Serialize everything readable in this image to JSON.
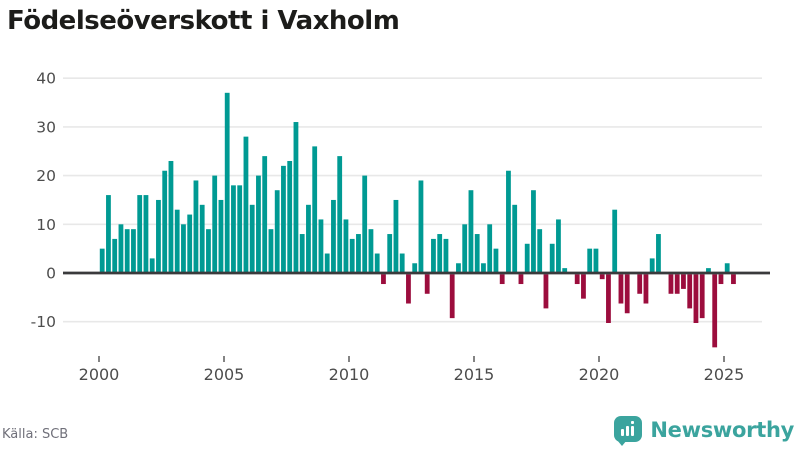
{
  "title": "Födelseöverskott i Vaxholm",
  "source": "Källa: SCB",
  "branding": {
    "name": "Newsworthy",
    "color": "#3ba49e",
    "icon": "bar-chart-speech-bubble-icon"
  },
  "colors": {
    "positive_bar": "#009a93",
    "negative_bar": "#9c0d3d",
    "zero_axis": "#3a3a3c",
    "gridline": "#e8e8e8",
    "tick_label": "#4d4d4d",
    "title_text": "#1c1c1a",
    "source_text": "#70707a"
  },
  "chart_data": {
    "type": "bar",
    "title": "Födelseöverskott i Vaxholm",
    "xlabel": "",
    "ylabel": "",
    "frequency": "quarterly",
    "start_period": "2000 Q1",
    "end_period": "2025 Q2",
    "x_tick_labels": [
      "2000",
      "2005",
      "2010",
      "2015",
      "2020",
      "2025"
    ],
    "y_ticks": [
      40,
      30,
      20,
      10,
      0,
      -10
    ],
    "ylim": [
      -16,
      42
    ],
    "grid": "horizontal",
    "legend": "none",
    "series": [
      {
        "name": "Födelseöverskott",
        "values": [
          5,
          16,
          7,
          10,
          9,
          9,
          16,
          16,
          3,
          15,
          21,
          23,
          13,
          10,
          12,
          19,
          14,
          9,
          20,
          15,
          37,
          18,
          18,
          28,
          14,
          20,
          24,
          9,
          17,
          22,
          23,
          31,
          8,
          14,
          26,
          11,
          4,
          15,
          24,
          11,
          7,
          8,
          20,
          9,
          4,
          -2,
          8,
          15,
          4,
          -6,
          2,
          19,
          -4,
          7,
          8,
          7,
          -9,
          2,
          10,
          17,
          8,
          2,
          10,
          5,
          -2,
          21,
          14,
          -2,
          6,
          17,
          9,
          -7,
          6,
          11,
          1,
          0,
          -2,
          -5,
          5,
          5,
          -1,
          -10,
          13,
          -6,
          -8,
          0,
          -4,
          -6,
          3,
          8,
          0,
          -4,
          -4,
          -3,
          -7,
          -10,
          -9,
          1,
          -15,
          -2,
          2,
          -2
        ]
      }
    ]
  }
}
